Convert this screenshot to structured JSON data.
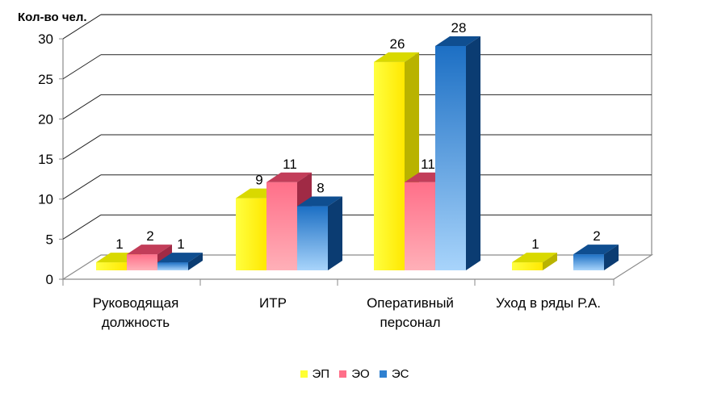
{
  "chart_data": {
    "type": "bar",
    "title": "",
    "ylabel": "Кол-во чел.",
    "xlabel": "",
    "ylim": [
      0,
      30
    ],
    "yticks": [
      0,
      5,
      10,
      15,
      20,
      25,
      30
    ],
    "grid": true,
    "legend_position": "bottom",
    "categories": [
      [
        "Руководящая",
        "должность"
      ],
      [
        "ИТР"
      ],
      [
        "Оперативный",
        "персонал"
      ],
      [
        "Уход в ряды Р.А."
      ]
    ],
    "series": [
      {
        "name": "ЭП",
        "color": "#ffff33",
        "values": [
          1,
          9,
          26,
          1
        ]
      },
      {
        "name": "ЭО",
        "color": "#ff7f96",
        "values": [
          2,
          11,
          11,
          0
        ]
      },
      {
        "name": "ЭС",
        "color": "#2f80d0",
        "values": [
          1,
          8,
          28,
          2
        ]
      }
    ]
  }
}
